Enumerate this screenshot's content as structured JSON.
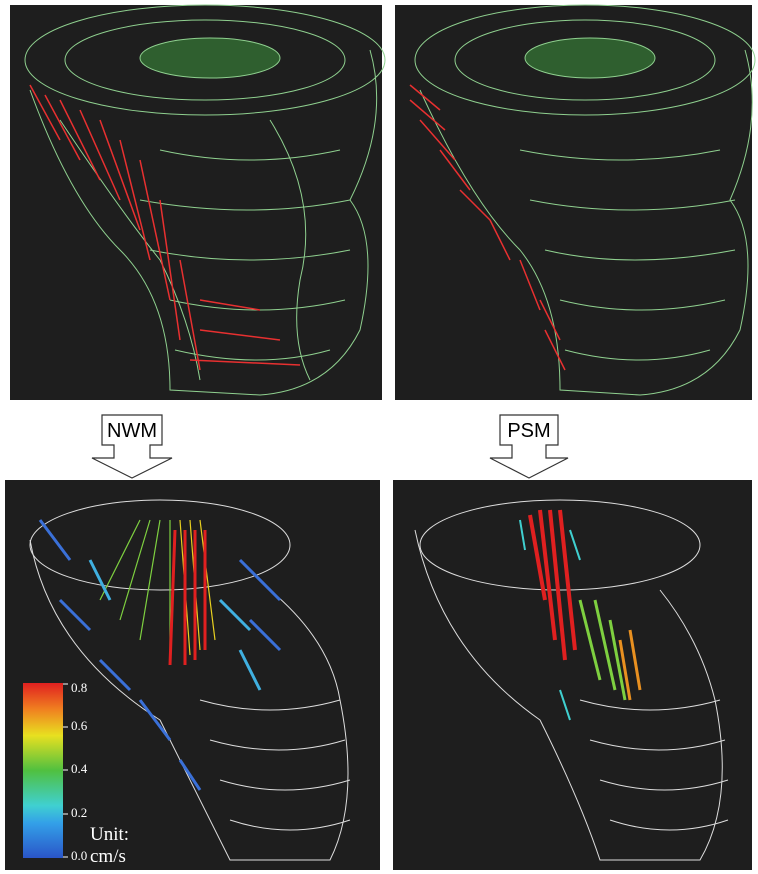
{
  "arrows": [
    {
      "label": "NWM"
    },
    {
      "label": "PSM"
    }
  ],
  "colorbar": {
    "ticks": [
      "0.0",
      "0.2",
      "0.4",
      "0.6",
      "0.8"
    ],
    "unit_label": "Unit:",
    "unit": "cm/s"
  }
}
